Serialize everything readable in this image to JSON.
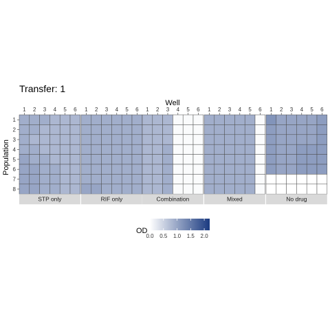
{
  "chart_data": {
    "type": "heatmap",
    "title": "Transfer: 1",
    "xlabel": "Well",
    "ylabel": "Population",
    "x_ticks": [
      "1",
      "2",
      "3",
      "4",
      "5",
      "6"
    ],
    "y_ticks": [
      "1",
      "2",
      "3",
      "4",
      "5",
      "6",
      "7",
      "8"
    ],
    "legend": {
      "title": "OD",
      "ticks": [
        "0.0",
        "0.5",
        "1.0",
        "1.5",
        "2.0"
      ],
      "range": [
        0,
        2.2
      ],
      "low_color": "#ffffff",
      "high_color": "#1a3a80"
    },
    "facets": [
      {
        "label": "STP only",
        "values": [
          [
            0.9,
            0.9,
            0.9,
            0.8,
            0.8,
            0.8
          ],
          [
            0.9,
            0.9,
            0.8,
            0.8,
            0.8,
            0.8
          ],
          [
            0.9,
            0.8,
            0.8,
            0.8,
            0.8,
            0.8
          ],
          [
            0.9,
            0.9,
            0.8,
            0.8,
            0.8,
            0.8
          ],
          [
            1.0,
            0.9,
            0.9,
            0.8,
            0.8,
            0.8
          ],
          [
            1.0,
            1.0,
            0.9,
            0.9,
            0.8,
            0.8
          ],
          [
            1.0,
            1.0,
            0.9,
            0.9,
            0.8,
            0.8
          ],
          [
            1.0,
            1.0,
            0.9,
            0.9,
            0.8,
            0.8
          ]
        ]
      },
      {
        "label": "RIF only",
        "values": [
          [
            0.9,
            0.9,
            0.9,
            0.9,
            0.9,
            0.9
          ],
          [
            0.9,
            0.9,
            0.9,
            0.9,
            0.9,
            0.9
          ],
          [
            0.9,
            0.9,
            0.9,
            0.9,
            0.9,
            0.9
          ],
          [
            0.9,
            0.9,
            0.9,
            0.9,
            0.9,
            0.9
          ],
          [
            0.9,
            0.9,
            0.9,
            0.9,
            0.9,
            0.9
          ],
          [
            0.9,
            0.9,
            0.9,
            0.9,
            0.9,
            0.9
          ],
          [
            0.9,
            0.9,
            0.9,
            0.9,
            0.9,
            0.9
          ],
          [
            1.0,
            1.0,
            0.9,
            0.9,
            0.9,
            0.9
          ]
        ]
      },
      {
        "label": "Combination",
        "values": [
          [
            0.8,
            0.8,
            0.8,
            0.05,
            0.05,
            0.05
          ],
          [
            0.8,
            0.8,
            0.8,
            0.05,
            0.05,
            0.05
          ],
          [
            0.8,
            0.8,
            0.8,
            0.05,
            0.05,
            0.05
          ],
          [
            0.8,
            0.8,
            0.9,
            0.05,
            0.05,
            0.05
          ],
          [
            0.8,
            0.8,
            0.9,
            0.05,
            0.05,
            0.05
          ],
          [
            0.8,
            0.8,
            0.9,
            0.05,
            0.05,
            0.05
          ],
          [
            0.8,
            0.8,
            0.9,
            0.05,
            0.05,
            0.05
          ],
          [
            0.8,
            0.8,
            0.9,
            0.05,
            0.05,
            0.05
          ]
        ]
      },
      {
        "label": "Mixed",
        "values": [
          [
            0.9,
            0.9,
            0.9,
            0.9,
            0.9,
            0.05
          ],
          [
            0.9,
            0.9,
            0.9,
            0.9,
            0.9,
            0.05
          ],
          [
            0.9,
            0.9,
            0.9,
            0.9,
            0.9,
            0.05
          ],
          [
            0.9,
            0.9,
            0.9,
            0.9,
            0.9,
            0.05
          ],
          [
            0.9,
            0.9,
            0.9,
            0.9,
            0.9,
            0.05
          ],
          [
            0.9,
            0.9,
            0.9,
            0.9,
            0.9,
            0.05
          ],
          [
            0.9,
            0.9,
            0.9,
            0.9,
            0.9,
            0.05
          ],
          [
            0.9,
            0.9,
            0.9,
            0.9,
            0.9,
            0.05
          ]
        ]
      },
      {
        "label": "No drug",
        "values": [
          [
            1.2,
            1.0,
            1.0,
            1.0,
            1.0,
            1.1
          ],
          [
            1.1,
            1.0,
            1.0,
            1.0,
            1.0,
            1.1
          ],
          [
            1.1,
            1.0,
            1.0,
            1.0,
            1.0,
            1.1
          ],
          [
            1.1,
            1.0,
            1.0,
            1.1,
            1.1,
            1.1
          ],
          [
            1.1,
            1.0,
            1.0,
            1.1,
            1.1,
            1.1
          ],
          [
            1.1,
            1.0,
            1.0,
            1.1,
            1.1,
            1.1
          ],
          [
            0.0,
            0.0,
            0.0,
            0.0,
            0.0,
            0.0
          ],
          [
            0.0,
            0.0,
            0.0,
            0.0,
            0.0,
            0.0
          ]
        ]
      }
    ]
  }
}
